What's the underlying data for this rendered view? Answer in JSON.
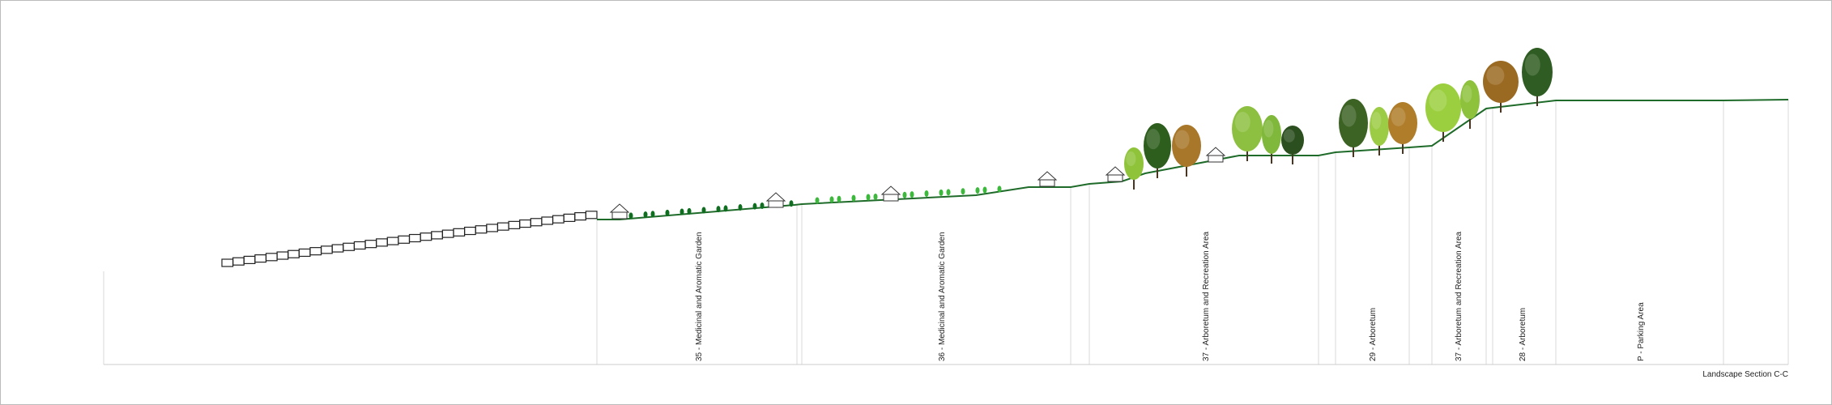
{
  "title": "Landscape Section C-C",
  "zones": [
    {
      "label": "35 - Medicinal and Aromatic Garden"
    },
    {
      "label": "36 - Medicinal and Aromatic Garden"
    },
    {
      "label": "37 - Arboretum and Recreation Area"
    },
    {
      "label": "29 - Arboretum"
    },
    {
      "label": "37 - Arboretum and Recreation Area"
    },
    {
      "label": "28 - Arboretum"
    },
    {
      "label": "P - Parking Area"
    }
  ]
}
